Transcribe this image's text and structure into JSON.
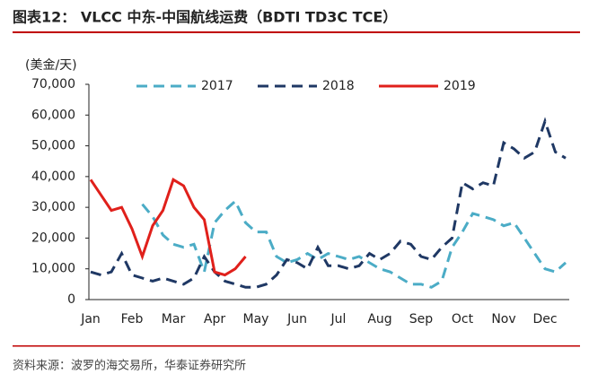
{
  "chart_data": {
    "type": "line",
    "title": "图表12：  VLCC 中东-中国航线运费（BDTI TD3C TCE）",
    "y_label": "(美金/天)",
    "source": "资料来源：波罗的海交易所，华泰证券研究所",
    "categories": [
      "Jan",
      null,
      null,
      null,
      "Feb",
      null,
      null,
      null,
      "Mar",
      null,
      null,
      null,
      "Apr",
      null,
      null,
      null,
      "May",
      null,
      null,
      null,
      "Jun",
      null,
      null,
      null,
      "Jul",
      null,
      null,
      null,
      "Aug",
      null,
      null,
      null,
      "Sep",
      null,
      null,
      null,
      "Oct",
      null,
      null,
      null,
      "Nov",
      null,
      null,
      null,
      "Dec",
      null,
      null
    ],
    "series": [
      {
        "name": "2017",
        "color": "#4bacc6",
        "dash": "12,7",
        "values": [
          null,
          null,
          null,
          null,
          null,
          31000,
          27000,
          21000,
          18000,
          17000,
          18000,
          9000,
          25000,
          29000,
          32000,
          25000,
          22000,
          22000,
          14000,
          12000,
          13000,
          15000,
          13000,
          15000,
          14000,
          13000,
          14000,
          12000,
          10000,
          9000,
          7000,
          5000,
          5000,
          4000,
          6000,
          17000,
          22000,
          28000,
          27000,
          26000,
          24000,
          25000,
          20000,
          15000,
          10000,
          9000,
          12000
        ]
      },
      {
        "name": "2018",
        "color": "#1f3864",
        "dash": "12,7",
        "values": [
          9000,
          8000,
          9000,
          15000,
          8000,
          7000,
          6000,
          7000,
          6000,
          5000,
          7000,
          14000,
          9000,
          6000,
          5000,
          4000,
          4000,
          5000,
          8000,
          13000,
          12000,
          10000,
          17000,
          11000,
          11000,
          10000,
          11000,
          15000,
          13000,
          15000,
          19000,
          18000,
          14000,
          13000,
          17000,
          20000,
          38000,
          36000,
          38000,
          37000,
          51000,
          49000,
          46000,
          48000,
          58000,
          48000,
          46000
        ]
      },
      {
        "name": "2019",
        "color": "#e0201b",
        "dash": "none",
        "values": [
          39000,
          34000,
          29000,
          30000,
          23000,
          14000,
          24000,
          29000,
          39000,
          37000,
          30000,
          26000,
          9000,
          8000,
          10000,
          14000,
          null,
          null,
          null,
          null,
          null,
          null,
          null,
          null,
          null,
          null,
          null,
          null,
          null,
          null,
          null,
          null,
          null,
          null,
          null,
          null,
          null,
          null,
          null,
          null,
          null,
          null,
          null,
          null,
          null,
          null,
          null
        ]
      }
    ],
    "ylim": [
      0,
      70000
    ],
    "yticks": [
      0,
      {
        "value": 10000,
        "label": "10,000"
      },
      {
        "value": 20000,
        "label": "20,000"
      },
      {
        "value": 30000,
        "label": "30,000"
      },
      {
        "value": 40000,
        "label": "40,000"
      },
      {
        "value": 50000,
        "label": "50,000"
      },
      {
        "value": 60000,
        "label": "60,000"
      },
      {
        "value": 70000,
        "label": "70,000"
      }
    ],
    "legend": "top"
  }
}
